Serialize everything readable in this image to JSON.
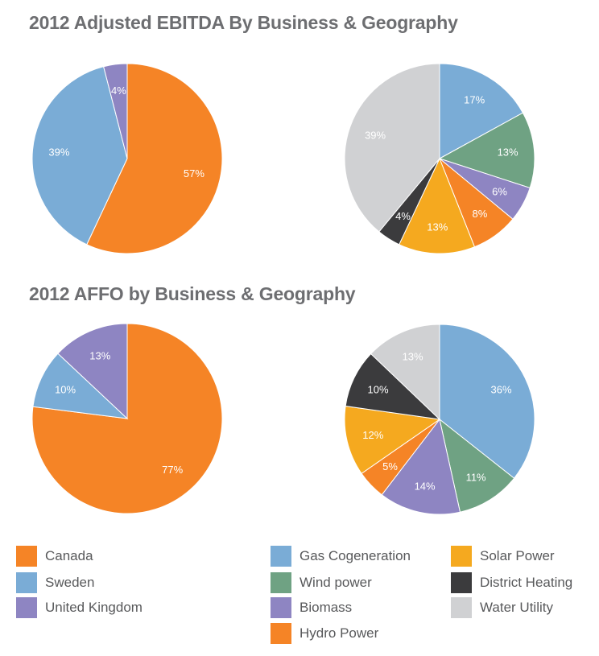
{
  "colors": {
    "Canada": "#f58426",
    "Sweden": "#7aacd6",
    "United Kingdom": "#8e85c2",
    "Gas Cogeneration": "#7aacd6",
    "Wind power": "#6fa283",
    "Biomass": "#8e85c2",
    "Hydro Power": "#f58426",
    "Solar Power": "#f5a91f",
    "District Heating": "#3b3b3d",
    "Water Utility": "#d0d1d3"
  },
  "chart_data": [
    {
      "type": "pie",
      "title": "2012 Adjusted EBITDA By Business & Geography",
      "subject": "geography",
      "slices": [
        {
          "label": "Canada",
          "value": 57,
          "display": "57%"
        },
        {
          "label": "Sweden",
          "value": 39,
          "display": "39%"
        },
        {
          "label": "United Kingdom",
          "value": 4,
          "display": "4%"
        }
      ]
    },
    {
      "type": "pie",
      "title": "2012 Adjusted EBITDA By Business & Geography",
      "subject": "business",
      "slices": [
        {
          "label": "Gas Cogeneration",
          "value": 17,
          "display": "17%"
        },
        {
          "label": "Wind power",
          "value": 13,
          "display": "13%"
        },
        {
          "label": "Biomass",
          "value": 6,
          "display": "6%"
        },
        {
          "label": "Hydro Power",
          "value": 8,
          "display": "8%"
        },
        {
          "label": "Solar Power",
          "value": 13,
          "display": "13%"
        },
        {
          "label": "District Heating",
          "value": 4,
          "display": "4%"
        },
        {
          "label": "Water Utility",
          "value": 39,
          "display": "39%"
        }
      ]
    },
    {
      "type": "pie",
      "title": "2012 AFFO by Business & Geography",
      "subject": "geography",
      "slices": [
        {
          "label": "Canada",
          "value": 77,
          "display": "77%"
        },
        {
          "label": "Sweden",
          "value": 10,
          "display": "10%"
        },
        {
          "label": "United Kingdom",
          "value": 13,
          "display": "13%"
        }
      ]
    },
    {
      "type": "pie",
      "title": "2012 AFFO by Business & Geography",
      "subject": "business",
      "slices": [
        {
          "label": "Gas Cogeneration",
          "value": 36,
          "display": "36%"
        },
        {
          "label": "Wind power",
          "value": 11,
          "display": "11%"
        },
        {
          "label": "Biomass",
          "value": 14,
          "display": "14%"
        },
        {
          "label": "Hydro Power",
          "value": 5,
          "display": "5%"
        },
        {
          "label": "Solar Power",
          "value": 12,
          "display": "12%"
        },
        {
          "label": "District Heating",
          "value": 10,
          "display": "10%"
        },
        {
          "label": "Water Utility",
          "value": 13,
          "display": "13%"
        }
      ]
    }
  ],
  "legend": {
    "geography": [
      "Canada",
      "Sweden",
      "United Kingdom"
    ],
    "business_col1": [
      "Gas Cogeneration",
      "Wind power",
      "Biomass",
      "Hydro Power"
    ],
    "business_col2": [
      "Solar Power",
      "District Heating",
      "Water Utility"
    ]
  }
}
